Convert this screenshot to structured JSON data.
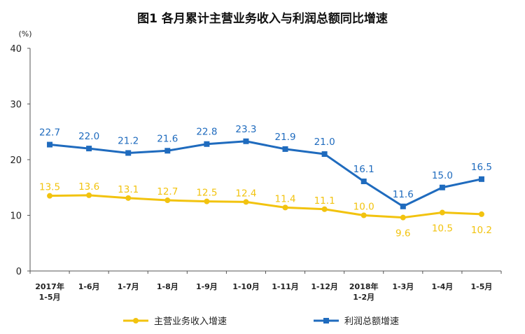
{
  "chart_data": {
    "type": "line",
    "title": "图1  各月累计主营业务收入与利润总额同比增速",
    "unit": "(%)",
    "ylim": [
      0,
      40
    ],
    "yticks": [
      "0",
      "10",
      "20",
      "30",
      "40"
    ],
    "categories": [
      [
        "2017年",
        "1-5月"
      ],
      [
        "1-6月"
      ],
      [
        "1-7月"
      ],
      [
        "1-8月"
      ],
      [
        "1-9月"
      ],
      [
        "1-10月"
      ],
      [
        "1-11月"
      ],
      [
        "1-12月"
      ],
      [
        "2018年",
        "1-2月"
      ],
      [
        "1-3月"
      ],
      [
        "1-4月"
      ],
      [
        "1-5月"
      ]
    ],
    "series": [
      {
        "name": "主营业务收入增速",
        "color": "#F2C30F",
        "labels": [
          "13.5",
          "13.6",
          "13.1",
          "12.7",
          "12.5",
          "12.4",
          "11.4",
          "11.1",
          "10.0",
          "9.6",
          "10.5",
          "10.2"
        ],
        "values": [
          13.5,
          13.6,
          13.1,
          12.7,
          12.5,
          12.4,
          11.4,
          11.1,
          10.0,
          9.6,
          10.5,
          10.2
        ]
      },
      {
        "name": "利润总额增速",
        "color": "#1F6BBE",
        "labels": [
          "22.7",
          "22.0",
          "21.2",
          "21.6",
          "22.8",
          "23.3",
          "21.9",
          "21.0",
          "16.1",
          "11.6",
          "15.0",
          "16.5"
        ],
        "values": [
          22.7,
          22.0,
          21.2,
          21.6,
          22.8,
          23.3,
          21.9,
          21.0,
          16.1,
          11.6,
          15.0,
          16.5
        ]
      }
    ]
  }
}
